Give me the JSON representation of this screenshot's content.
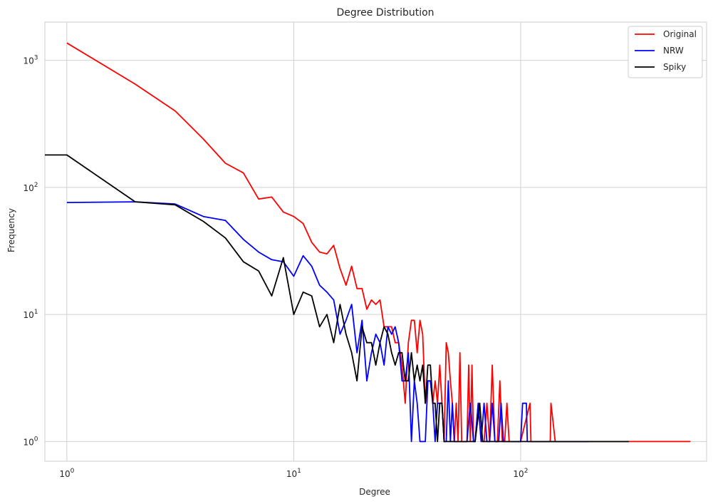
{
  "chart_data": {
    "type": "line",
    "title": "Degree Distribution",
    "xlabel": "Degree",
    "ylabel": "Frequency",
    "xscale": "log",
    "yscale": "log",
    "xlim": [
      0.8,
      660
    ],
    "ylim": [
      0.7,
      2000
    ],
    "grid": true,
    "legend_position": "top-right",
    "x_ticks": [
      {
        "base": "10",
        "exp": "0"
      },
      {
        "base": "10",
        "exp": "1"
      },
      {
        "base": "10",
        "exp": "2"
      }
    ],
    "y_ticks": [
      {
        "base": "10",
        "exp": "0"
      },
      {
        "base": "10",
        "exp": "1"
      },
      {
        "base": "10",
        "exp": "2"
      },
      {
        "base": "10",
        "exp": "3"
      }
    ],
    "series": [
      {
        "name": "Original",
        "color": "#ff0000",
        "points": [
          [
            1,
            1370
          ],
          [
            2,
            650
          ],
          [
            3,
            400
          ],
          [
            4,
            240
          ],
          [
            5,
            155
          ],
          [
            6,
            130
          ],
          [
            7,
            81
          ],
          [
            8,
            84
          ],
          [
            9,
            64
          ],
          [
            10,
            59
          ],
          [
            11,
            52
          ],
          [
            12,
            37
          ],
          [
            13,
            31
          ],
          [
            14,
            30
          ],
          [
            15,
            35
          ],
          [
            16,
            23
          ],
          [
            17,
            17
          ],
          [
            18,
            24
          ],
          [
            19,
            16
          ],
          [
            20,
            16
          ],
          [
            21,
            11
          ],
          [
            22,
            13
          ],
          [
            23,
            12
          ],
          [
            24,
            13
          ],
          [
            25,
            8
          ],
          [
            26,
            8
          ],
          [
            27,
            8
          ],
          [
            28,
            6
          ],
          [
            29,
            6
          ],
          [
            30,
            4
          ],
          [
            31,
            2
          ],
          [
            32,
            6
          ],
          [
            33,
            9
          ],
          [
            34,
            9
          ],
          [
            35,
            5
          ],
          [
            36,
            9
          ],
          [
            37,
            7
          ],
          [
            38,
            2
          ],
          [
            39,
            3
          ],
          [
            40,
            3
          ],
          [
            41,
            2
          ],
          [
            42,
            3
          ],
          [
            43,
            2
          ],
          [
            44,
            4
          ],
          [
            45,
            2
          ],
          [
            46,
            1
          ],
          [
            47,
            6
          ],
          [
            48,
            5
          ],
          [
            49,
            3
          ],
          [
            50,
            2
          ],
          [
            51,
            1
          ],
          [
            52,
            2
          ],
          [
            53,
            1
          ],
          [
            54,
            5
          ],
          [
            55,
            1
          ],
          [
            56,
            1
          ],
          [
            57,
            1
          ],
          [
            58,
            1
          ],
          [
            59,
            4
          ],
          [
            60,
            1
          ],
          [
            61,
            4
          ],
          [
            62,
            1
          ],
          [
            63,
            1
          ],
          [
            65,
            2
          ],
          [
            67,
            1
          ],
          [
            69,
            1
          ],
          [
            71,
            2
          ],
          [
            73,
            1
          ],
          [
            75,
            4
          ],
          [
            77,
            1
          ],
          [
            79,
            1
          ],
          [
            81,
            3
          ],
          [
            83,
            1
          ],
          [
            85,
            1
          ],
          [
            87,
            2
          ],
          [
            89,
            1
          ],
          [
            100,
            1
          ],
          [
            110,
            2
          ],
          [
            111,
            1
          ],
          [
            135,
            1
          ],
          [
            136,
            2
          ],
          [
            142,
            1
          ],
          [
            170,
            1
          ],
          [
            300,
            1
          ],
          [
            560,
            1
          ]
        ]
      },
      {
        "name": "NRW",
        "color": "#0000ff",
        "points": [
          [
            1,
            76
          ],
          [
            2,
            77
          ],
          [
            3,
            74
          ],
          [
            4,
            59
          ],
          [
            5,
            55
          ],
          [
            6,
            39
          ],
          [
            7,
            31
          ],
          [
            8,
            27
          ],
          [
            9,
            26
          ],
          [
            10,
            20
          ],
          [
            11,
            29
          ],
          [
            12,
            24
          ],
          [
            13,
            17
          ],
          [
            14,
            15
          ],
          [
            15,
            13
          ],
          [
            16,
            7
          ],
          [
            17,
            9
          ],
          [
            18,
            12
          ],
          [
            19,
            5
          ],
          [
            20,
            9
          ],
          [
            21,
            3
          ],
          [
            22,
            5
          ],
          [
            23,
            7
          ],
          [
            24,
            6
          ],
          [
            25,
            4
          ],
          [
            26,
            8
          ],
          [
            27,
            7
          ],
          [
            28,
            8
          ],
          [
            29,
            6
          ],
          [
            30,
            3
          ],
          [
            31,
            3
          ],
          [
            32,
            5
          ],
          [
            33,
            1
          ],
          [
            34,
            3
          ],
          [
            35,
            2
          ],
          [
            36,
            1
          ],
          [
            37,
            1
          ],
          [
            38,
            1
          ],
          [
            39,
            3
          ],
          [
            40,
            3
          ],
          [
            41,
            2
          ],
          [
            42,
            1
          ],
          [
            43,
            2
          ],
          [
            44,
            2
          ],
          [
            45,
            2
          ],
          [
            46,
            1
          ],
          [
            47,
            1
          ],
          [
            48,
            3
          ],
          [
            49,
            1
          ],
          [
            50,
            2
          ],
          [
            51,
            1
          ],
          [
            52,
            1
          ],
          [
            55,
            1
          ],
          [
            58,
            1
          ],
          [
            60,
            2
          ],
          [
            62,
            1
          ],
          [
            63,
            1
          ],
          [
            65,
            2
          ],
          [
            67,
            1
          ],
          [
            69,
            2
          ],
          [
            71,
            1
          ],
          [
            73,
            1
          ],
          [
            75,
            2
          ],
          [
            77,
            1
          ],
          [
            80,
            1
          ],
          [
            82,
            2
          ],
          [
            84,
            1
          ],
          [
            90,
            1
          ],
          [
            100,
            1
          ],
          [
            102,
            2
          ],
          [
            106,
            2
          ],
          [
            107,
            1
          ],
          [
            120,
            1
          ],
          [
            150,
            1
          ],
          [
            200,
            1
          ]
        ]
      },
      {
        "name": "Spiky",
        "color": "#000000",
        "points": [
          [
            0.8,
            180
          ],
          [
            1,
            180
          ],
          [
            2,
            77
          ],
          [
            3,
            73
          ],
          [
            4,
            54
          ],
          [
            5,
            40
          ],
          [
            6,
            26
          ],
          [
            7,
            22
          ],
          [
            8,
            14
          ],
          [
            9,
            28
          ],
          [
            10,
            10
          ],
          [
            11,
            15
          ],
          [
            12,
            14
          ],
          [
            13,
            8
          ],
          [
            14,
            10
          ],
          [
            15,
            6
          ],
          [
            16,
            12
          ],
          [
            17,
            7
          ],
          [
            18,
            5
          ],
          [
            19,
            3
          ],
          [
            20,
            8
          ],
          [
            21,
            6
          ],
          [
            22,
            6
          ],
          [
            23,
            4
          ],
          [
            24,
            6
          ],
          [
            25,
            8
          ],
          [
            26,
            7
          ],
          [
            27,
            5
          ],
          [
            28,
            4
          ],
          [
            29,
            5
          ],
          [
            30,
            5
          ],
          [
            31,
            3
          ],
          [
            32,
            3
          ],
          [
            33,
            5
          ],
          [
            34,
            3
          ],
          [
            35,
            4
          ],
          [
            36,
            3
          ],
          [
            37,
            4
          ],
          [
            38,
            2
          ],
          [
            39,
            4
          ],
          [
            40,
            4
          ],
          [
            41,
            2
          ],
          [
            42,
            2
          ],
          [
            43,
            1
          ],
          [
            44,
            2
          ],
          [
            45,
            2
          ],
          [
            46,
            1
          ],
          [
            47,
            1
          ],
          [
            50,
            1
          ],
          [
            55,
            1
          ],
          [
            60,
            1
          ],
          [
            63,
            1
          ],
          [
            66,
            2
          ],
          [
            68,
            1
          ],
          [
            70,
            1
          ],
          [
            73,
            1
          ],
          [
            76,
            1
          ],
          [
            80,
            1
          ],
          [
            100,
            1
          ],
          [
            150,
            1
          ],
          [
            200,
            1
          ],
          [
            300,
            1
          ]
        ]
      }
    ]
  }
}
